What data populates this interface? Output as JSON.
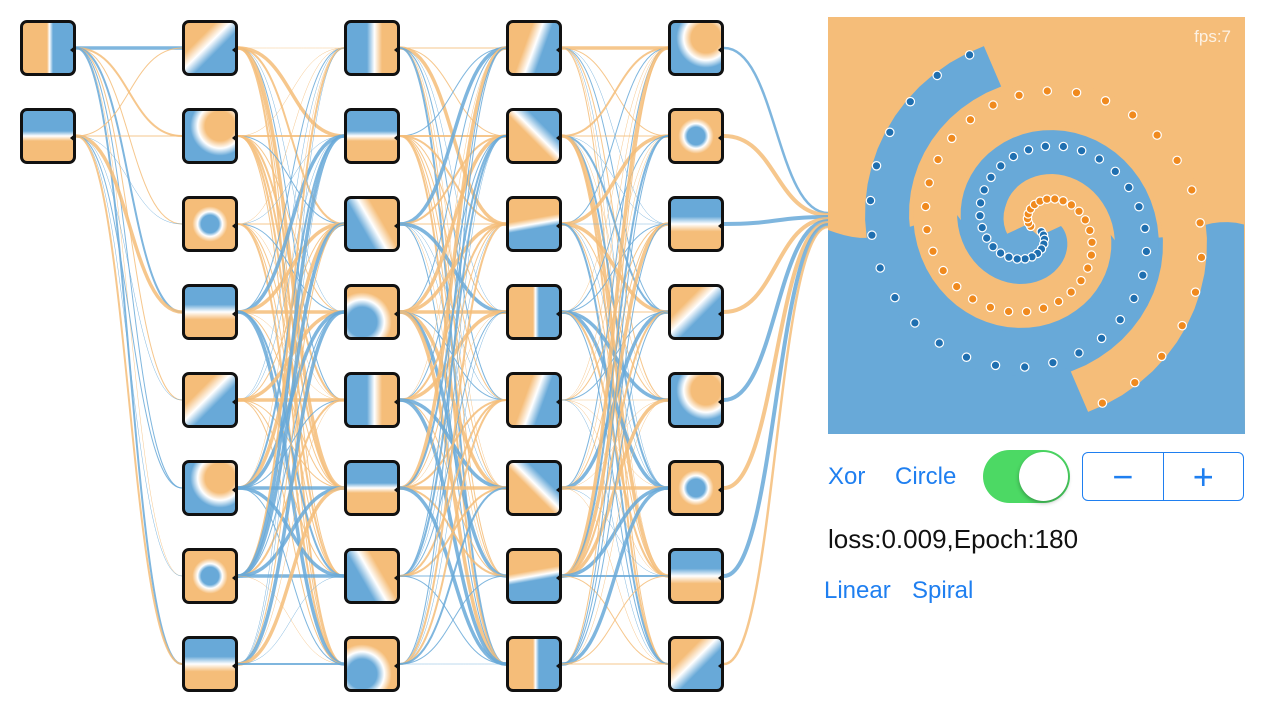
{
  "colors": {
    "orange": "#f5bd79",
    "blue": "#68a9d8",
    "accent": "#1f7ff0",
    "toggle_on": "#4cd964"
  },
  "network": {
    "layers": [
      2,
      8,
      8,
      8,
      8
    ]
  },
  "plot": {
    "fps_label": "fps:7"
  },
  "controls": {
    "xor_label": "Xor",
    "circle_label": "Circle",
    "linear_label": "Linear",
    "spiral_label": "Spiral",
    "toggle_state": "on",
    "minus_label": "−",
    "plus_label": "+"
  },
  "status": {
    "loss_text": "loss:0.009,Epoch:180"
  }
}
